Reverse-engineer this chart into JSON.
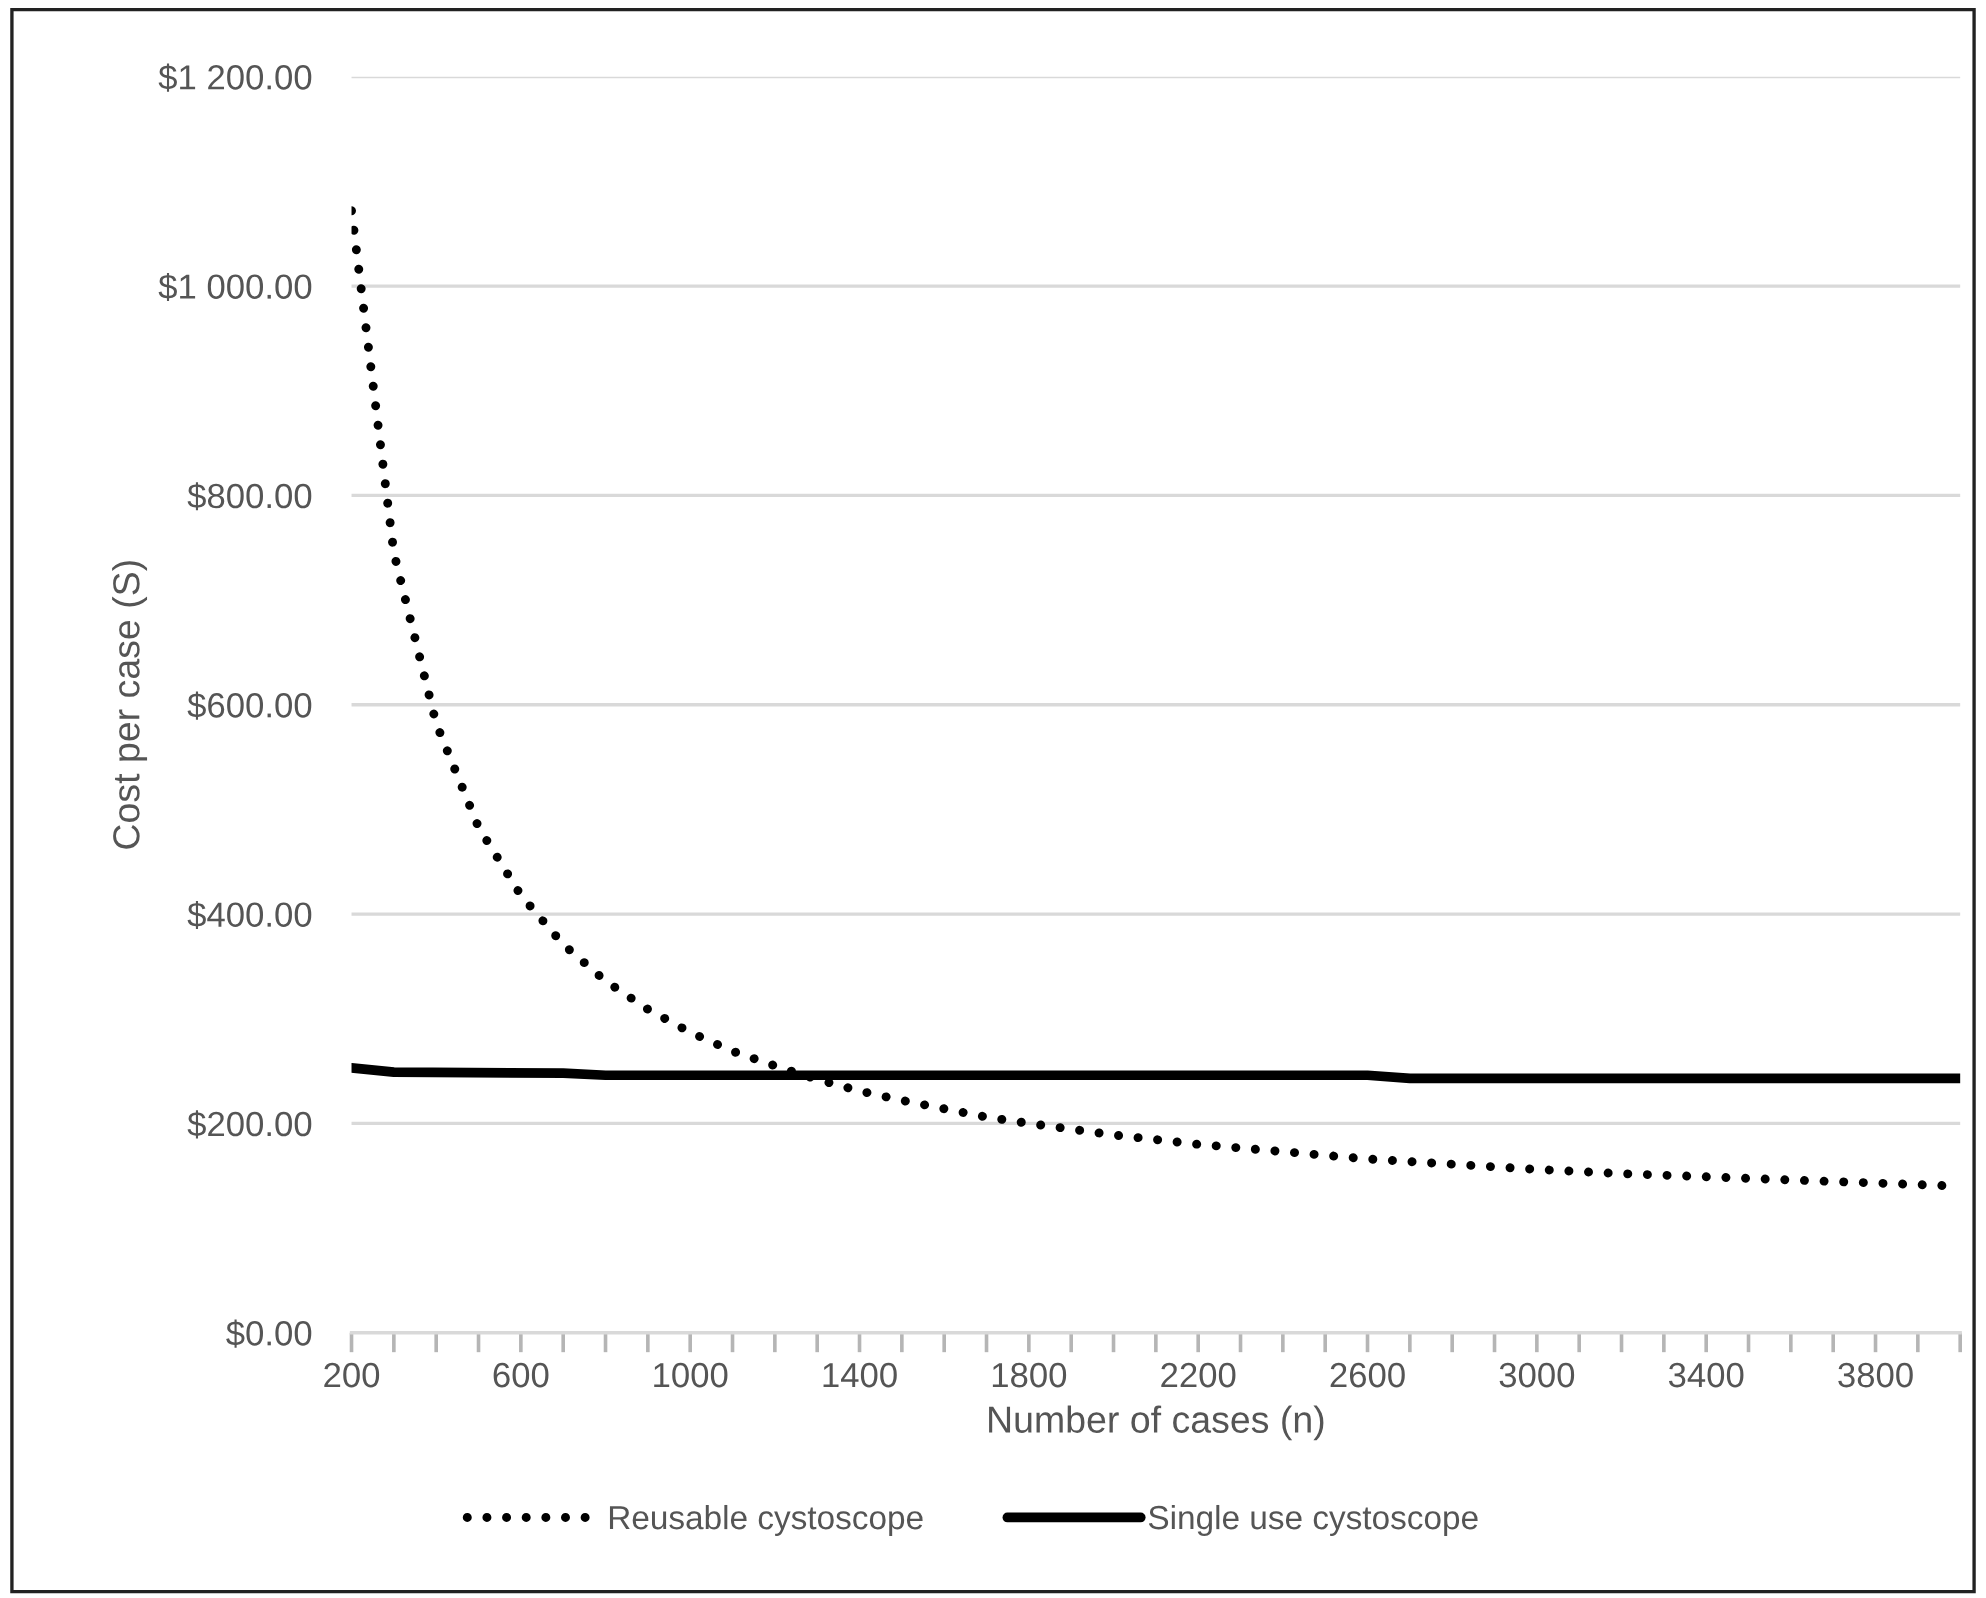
{
  "chart_data": {
    "type": "line",
    "xlabel": "Number of cases (n)",
    "ylabel": "Cost per case (S)",
    "xlim": [
      200,
      4000
    ],
    "xticks": [
      200,
      {
        "value": 300,
        "label": null
      },
      {
        "value": 400,
        "label": null
      },
      {
        "value": 500,
        "label": null
      },
      600,
      {
        "value": 700,
        "label": null
      },
      {
        "value": 800,
        "label": null
      },
      {
        "value": 900,
        "label": null
      },
      1000,
      {
        "value": 1100,
        "label": null
      },
      {
        "value": 1200,
        "label": null
      },
      {
        "value": 1300,
        "label": null
      },
      1400,
      {
        "value": 1500,
        "label": null
      },
      {
        "value": 1600,
        "label": null
      },
      {
        "value": 1700,
        "label": null
      },
      1800,
      {
        "value": 1900,
        "label": null
      },
      {
        "value": 2000,
        "label": null
      },
      {
        "value": 2100,
        "label": null
      },
      2200,
      {
        "value": 2300,
        "label": null
      },
      {
        "value": 2400,
        "label": null
      },
      {
        "value": 2500,
        "label": null
      },
      2600,
      {
        "value": 2700,
        "label": null
      },
      {
        "value": 2800,
        "label": null
      },
      {
        "value": 2900,
        "label": null
      },
      3000,
      {
        "value": 3100,
        "label": null
      },
      {
        "value": 3200,
        "label": null
      },
      {
        "value": 3300,
        "label": null
      },
      3400,
      {
        "value": 3500,
        "label": null
      },
      {
        "value": 3600,
        "label": null
      },
      {
        "value": 3700,
        "label": null
      },
      3800,
      {
        "value": 3900,
        "label": null
      },
      {
        "value": 4000,
        "label": null
      }
    ],
    "ylim": [
      0,
      1200
    ],
    "yticks": [
      {
        "value": 0,
        "label": "$0.00"
      },
      {
        "value": 200,
        "label": "$200.00"
      },
      {
        "value": 400,
        "label": "$400.00"
      },
      {
        "value": 600,
        "label": "$600.00"
      },
      {
        "value": 800,
        "label": "$800.00"
      },
      {
        "value": 1000,
        "label": "$1 000.00"
      },
      {
        "value": 1200,
        "label": "$1 200.00"
      }
    ],
    "grid": "y",
    "legend": "bottom",
    "series": [
      {
        "name": "Reusable cystoscope",
        "color": "#000000",
        "line_style": "dotted",
        "x": [
          200,
          300,
          400,
          500,
          600,
          700,
          800,
          900,
          1000,
          1100,
          1200,
          1300,
          1400,
          1500,
          1600,
          1700,
          1800,
          2000,
          2200,
          2400,
          2600,
          2800,
          3000,
          3200,
          3400,
          3600,
          3800,
          4000
        ],
        "values": [
          1072,
          745,
          582,
          483,
          418,
          371,
          336,
          309,
          287,
          269,
          255,
          242,
          231,
          222,
          214,
          206,
          200,
          189,
          180,
          173,
          166,
          161,
          156,
          152,
          149,
          146,
          143,
          140
        ]
      },
      {
        "name": "Single use cystoscope",
        "color": "#000000",
        "line_style": "solid",
        "x": [
          200,
          300,
          700,
          800,
          2600,
          2700,
          4000
        ],
        "values": [
          253,
          249,
          248,
          246,
          246,
          243,
          243
        ]
      }
    ]
  }
}
